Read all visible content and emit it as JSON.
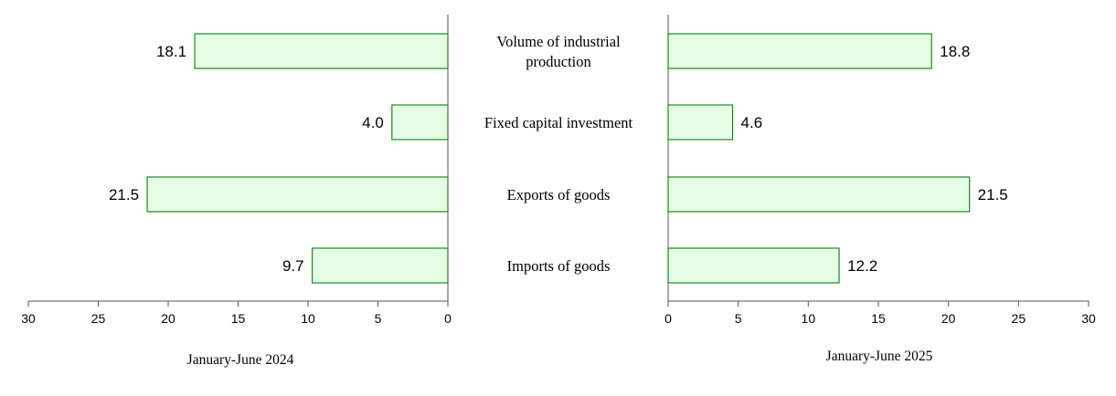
{
  "chart_data": {
    "type": "bar",
    "orientation": "horizontal-butterfly",
    "categories": [
      "Volume of industrial production",
      "Fixed capital investment",
      "Exports of goods",
      "Imports of goods"
    ],
    "category_lines": [
      [
        "Volume of industrial",
        "production"
      ],
      [
        "Fixed capital investment"
      ],
      [
        "Exports of goods"
      ],
      [
        "Imports of goods"
      ]
    ],
    "series": [
      {
        "name": "January-June 2024",
        "values": [
          18.1,
          4.0,
          21.5,
          9.7
        ],
        "labels": [
          "18.1",
          "4.0",
          "21.5",
          "9.7"
        ]
      },
      {
        "name": "January-June 2025",
        "values": [
          18.8,
          4.6,
          21.5,
          12.2
        ],
        "labels": [
          "18.8",
          "4.6",
          "21.5",
          "12.2"
        ]
      }
    ],
    "xlim": [
      0,
      30
    ],
    "xticks": [
      0,
      5,
      10,
      15,
      20,
      25,
      30
    ],
    "left_axis_reversed": true,
    "grid": false,
    "colors": {
      "bar_fill": "#e5fde5",
      "bar_stroke": "#1a8a1a"
    }
  }
}
